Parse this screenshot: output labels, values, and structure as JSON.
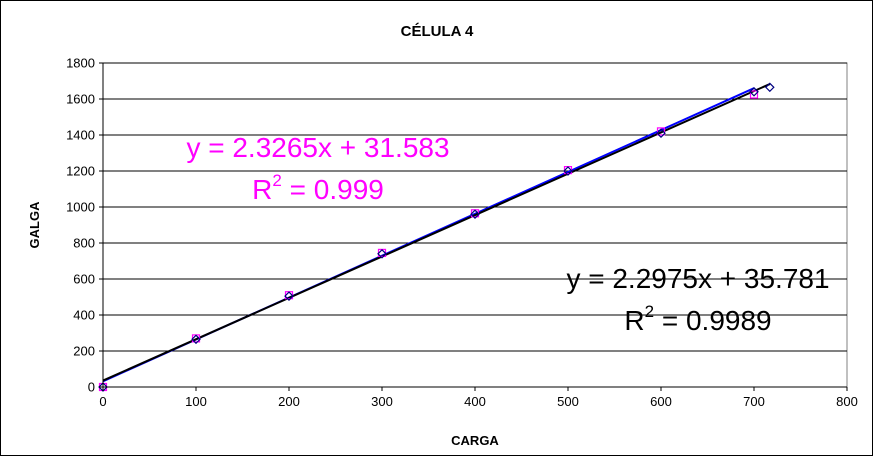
{
  "chart_data": {
    "type": "scatter",
    "title": "CÉLULA 4",
    "xlabel": "CARGA",
    "ylabel": "GALGA",
    "xlim": [
      0,
      800
    ],
    "ylim": [
      0,
      1800
    ],
    "xticks": [
      0,
      100,
      200,
      300,
      400,
      500,
      600,
      700,
      800
    ],
    "yticks": [
      0,
      200,
      400,
      600,
      800,
      1000,
      1200,
      1400,
      1600,
      1800
    ],
    "grid": "horizontal",
    "series": [
      {
        "marker": "square",
        "color": "#ff00ff",
        "x": [
          0,
          100,
          200,
          300,
          400,
          500,
          600,
          700
        ],
        "y": [
          0,
          270,
          510,
          745,
          965,
          1205,
          1420,
          1625
        ]
      },
      {
        "marker": "diamond",
        "color": "#000080",
        "x": [
          0,
          100,
          200,
          300,
          400,
          500,
          600,
          700,
          717
        ],
        "y": [
          0,
          265,
          505,
          740,
          960,
          1200,
          1410,
          1640,
          1665
        ]
      }
    ],
    "trendlines": [
      {
        "color": "#0000ff",
        "slope": 2.3265,
        "intercept": 31.583,
        "x_range": [
          0,
          700
        ]
      },
      {
        "color": "#000000",
        "slope": 2.2975,
        "intercept": 35.781,
        "x_range": [
          0,
          717
        ]
      }
    ],
    "annotations": [
      {
        "id": "eq1",
        "eq": "y = 2.3265x + 31.583",
        "r2_prefix": "R",
        "r2_exp": "2",
        "r2_value": " = 0.999",
        "color": "#ff00ff"
      },
      {
        "id": "eq2",
        "eq": "y = 2.2975x + 35.781",
        "r2_prefix": "R",
        "r2_exp": "2",
        "r2_value": " = 0.9989",
        "color": "#000000"
      }
    ]
  }
}
